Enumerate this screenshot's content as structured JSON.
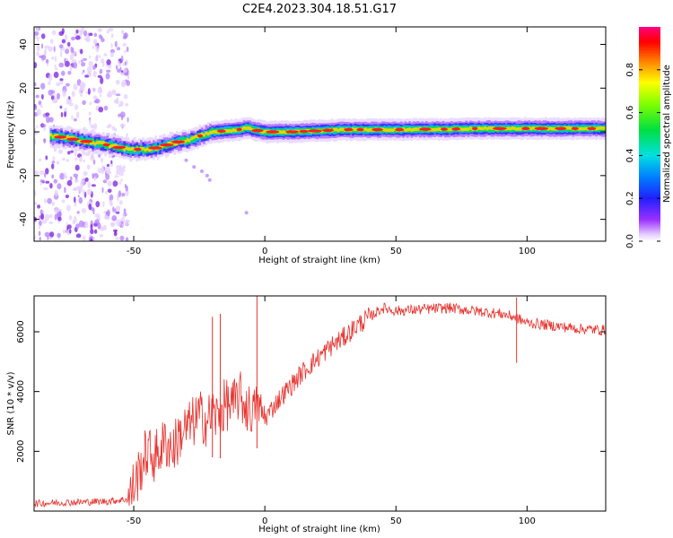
{
  "title": "C2E4.2023.304.18.51.G17",
  "chart_data": [
    {
      "type": "heatmap",
      "panel": "spectrogram",
      "xlabel": "Height of straight line (km)",
      "ylabel": "Frequency (Hz)",
      "xlim": [
        -88,
        130
      ],
      "ylim": [
        -50,
        48
      ],
      "xticks": [
        -50,
        0,
        50,
        100
      ],
      "yticks": [
        -40,
        -20,
        0,
        20,
        40
      ],
      "ridge": {
        "x": [
          -80,
          -70,
          -60,
          -52,
          -45,
          -40,
          -35,
          -30,
          -25,
          -20,
          -15,
          -10,
          -7,
          -5,
          0,
          10,
          20,
          30,
          40,
          50,
          60,
          70,
          80,
          90,
          100,
          110,
          120,
          130
        ],
        "freq": [
          -2,
          -4,
          -6,
          -8,
          -8,
          -7,
          -5,
          -4,
          -2,
          0,
          0.5,
          1,
          2,
          1,
          0,
          0,
          0.5,
          1,
          1,
          1,
          1.2,
          1.2,
          1.5,
          1.5,
          1.5,
          1.5,
          1.5,
          1.5
        ]
      },
      "colorbar": {
        "label": "Normalized spectral amplitude",
        "range": [
          0.0,
          1.0
        ],
        "ticks": [
          "0.0",
          "0.2",
          "0.4",
          "0.6",
          "0.8"
        ]
      }
    },
    {
      "type": "line",
      "panel": "snr",
      "xlabel": "Height of straight line (km)",
      "ylabel": "SNR (10 * v/v)",
      "xlim": [
        -88,
        130
      ],
      "ylim": [
        0,
        7200
      ],
      "xticks": [
        -50,
        0,
        50,
        100
      ],
      "yticks": [
        2000,
        4000,
        6000
      ],
      "color": "#e8332e",
      "series": {
        "name": "SNR",
        "x": [
          -88,
          -80,
          -70,
          -60,
          -52,
          -48,
          -45,
          -42,
          -38,
          -35,
          -32,
          -28,
          -25,
          -22,
          -20,
          -18,
          -15,
          -12,
          -10,
          -8,
          -5,
          -3,
          0,
          5,
          10,
          15,
          20,
          25,
          30,
          35,
          40,
          45,
          50,
          60,
          70,
          80,
          90,
          95,
          100,
          110,
          120,
          130
        ],
        "y": [
          250,
          280,
          300,
          330,
          400,
          1300,
          2000,
          1800,
          2300,
          2100,
          2600,
          2900,
          3200,
          3000,
          3300,
          3100,
          3600,
          3500,
          3900,
          3600,
          3300,
          3600,
          3100,
          3700,
          4200,
          4700,
          5100,
          5500,
          5800,
          6200,
          6500,
          6800,
          6700,
          6750,
          6800,
          6700,
          6600,
          6500,
          6300,
          6200,
          6100,
          6050
        ]
      },
      "spikes": [
        {
          "x": -20,
          "y": 6500
        },
        {
          "x": -17,
          "y": 6600
        },
        {
          "x": -3,
          "y": 7200
        },
        {
          "x": 96,
          "y": 7150
        }
      ]
    }
  ]
}
